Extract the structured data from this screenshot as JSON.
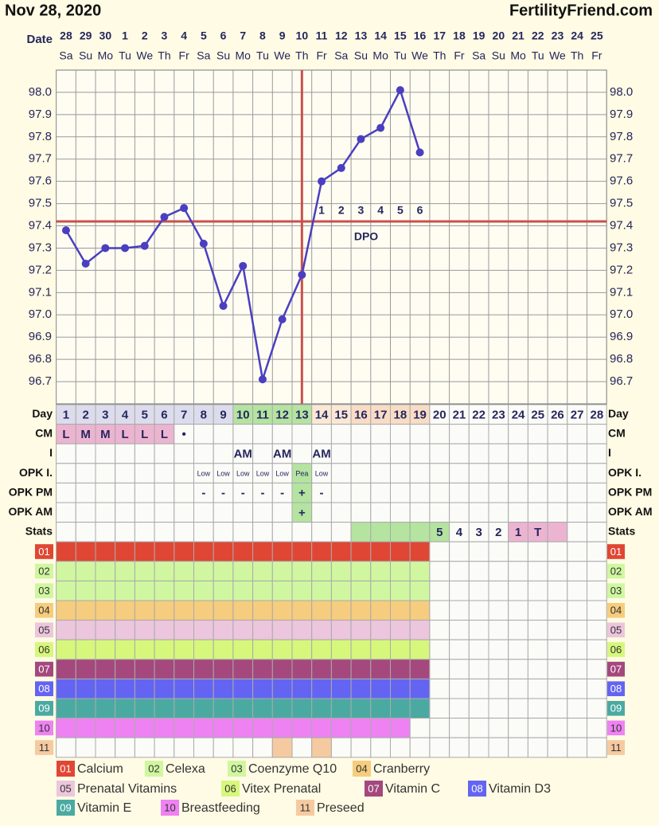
{
  "header": {
    "date": "Nov 28, 2020",
    "site": "FertilityFriend.com"
  },
  "date_row": {
    "label": "Date",
    "dates": [
      28,
      29,
      30,
      1,
      2,
      3,
      4,
      5,
      6,
      7,
      8,
      9,
      10,
      11,
      12,
      13,
      14,
      15,
      16,
      17,
      18,
      19,
      20,
      21,
      22,
      23,
      24,
      25
    ],
    "weekdays": [
      "Sa",
      "Su",
      "Mo",
      "Tu",
      "We",
      "Th",
      "Fr",
      "Sa",
      "Su",
      "Mo",
      "Tu",
      "We",
      "Th",
      "Fr",
      "Sa",
      "Su",
      "Mo",
      "Tu",
      "We",
      "Th",
      "Fr",
      "Sa",
      "Su",
      "Mo",
      "Tu",
      "We",
      "Th",
      "Fr"
    ]
  },
  "chart_data": {
    "type": "line",
    "categories": [
      28,
      29,
      30,
      1,
      2,
      3,
      4,
      5,
      6,
      7,
      8,
      9,
      10,
      11,
      12,
      13,
      14,
      15,
      16,
      17,
      18,
      19,
      20,
      21,
      22,
      23,
      24,
      25
    ],
    "series": [
      {
        "color": "#4a3fc0",
        "values": [
          97.38,
          97.23,
          97.3,
          97.3,
          97.31,
          97.44,
          97.48,
          97.32,
          97.04,
          97.22,
          96.71,
          96.98,
          97.18,
          97.6,
          97.66,
          97.79,
          97.84,
          98.01,
          97.73,
          null,
          null,
          null,
          null,
          null,
          null,
          null,
          null,
          null
        ]
      }
    ],
    "ylim": [
      96.6,
      98.1
    ],
    "yticks": [
      96.7,
      96.8,
      96.9,
      {
        "value": 97,
        "label": "97.0"
      },
      97.1,
      97.2,
      97.3,
      97.4,
      97.5,
      97.6,
      97.7,
      97.8,
      97.9,
      {
        "value": 98,
        "label": "98.0"
      }
    ],
    "grid": true,
    "coverline": 97.42,
    "coverline_color": "#c8514d",
    "ovulation_day": 13,
    "dpo_label": "DPO",
    "dpo": [
      null,
      null,
      null,
      null,
      null,
      null,
      null,
      null,
      null,
      null,
      null,
      null,
      null,
      1,
      2,
      3,
      4,
      5,
      6,
      null,
      null,
      null,
      null,
      null,
      null,
      null,
      null,
      null
    ]
  },
  "rows": [
    {
      "label": "Day",
      "cells": [
        1,
        2,
        3,
        4,
        5,
        6,
        7,
        8,
        9,
        10,
        11,
        12,
        13,
        14,
        15,
        16,
        17,
        18,
        19,
        20,
        21,
        22,
        23,
        24,
        25,
        26,
        27,
        28
      ],
      "colors": [
        "#dcdcec",
        "#dcdcec",
        "#dcdcec",
        "#dcdcec",
        "#dcdcec",
        "#dcdcec",
        "#dcdcec",
        "#dcdcec",
        "#dcdcec",
        "#b4e4a0",
        "#b4e4a0",
        "#b4e4a0",
        "#b4e4a0",
        "#fbe8d4",
        "#fbe8d4",
        "#f9dcc4",
        "#f9dcc4",
        "#f9dcc4",
        "#f9dcc4",
        null,
        null,
        null,
        null,
        null,
        null,
        null,
        null,
        null
      ]
    },
    {
      "label": "CM",
      "cells": [
        "L",
        "M",
        "M",
        "L",
        "L",
        "L",
        "•",
        null,
        null,
        null,
        null,
        null,
        null,
        null,
        null,
        null,
        null,
        null,
        null,
        null,
        null,
        null,
        null,
        null,
        null,
        null,
        null,
        null
      ],
      "colors": [
        "#ecb4d0",
        "#ecb4d0",
        "#ecb4d0",
        "#ecb4d0",
        "#ecb4d0",
        "#ecb4d0",
        null,
        null,
        null,
        null,
        null,
        null,
        null,
        null,
        null,
        null,
        null,
        null,
        null,
        null,
        null,
        null,
        null,
        null,
        null,
        null,
        null,
        null
      ]
    },
    {
      "label": "I",
      "cells": [
        null,
        null,
        null,
        null,
        null,
        null,
        null,
        null,
        null,
        "AM",
        null,
        "AM",
        null,
        "AM",
        null,
        null,
        null,
        null,
        null,
        null,
        null,
        null,
        null,
        null,
        null,
        null,
        null,
        null
      ]
    },
    {
      "label": "OPK I.",
      "cells": [
        null,
        null,
        null,
        null,
        null,
        null,
        null,
        "Low",
        "Low",
        "Low",
        "Low",
        "Low",
        "Pea",
        "Low",
        null,
        null,
        null,
        null,
        null,
        null,
        null,
        null,
        null,
        null,
        null,
        null,
        null,
        null
      ],
      "colors": [
        null,
        null,
        null,
        null,
        null,
        null,
        null,
        null,
        null,
        null,
        null,
        null,
        "#b4e4a0",
        null,
        null,
        null,
        null,
        null,
        null,
        null,
        null,
        null,
        null,
        null,
        null,
        null,
        null,
        null
      ]
    },
    {
      "label": "OPK PM",
      "cells": [
        null,
        null,
        null,
        null,
        null,
        null,
        null,
        "-",
        "-",
        "-",
        "-",
        "-",
        "+",
        "-",
        null,
        null,
        null,
        null,
        null,
        null,
        null,
        null,
        null,
        null,
        null,
        null,
        null,
        null
      ],
      "colors": [
        null,
        null,
        null,
        null,
        null,
        null,
        null,
        null,
        null,
        null,
        null,
        null,
        "#b4e4a0",
        null,
        null,
        null,
        null,
        null,
        null,
        null,
        null,
        null,
        null,
        null,
        null,
        null,
        null,
        null
      ]
    },
    {
      "label": "OPK AM",
      "cells": [
        null,
        null,
        null,
        null,
        null,
        null,
        null,
        null,
        null,
        null,
        null,
        null,
        "+",
        null,
        null,
        null,
        null,
        null,
        null,
        null,
        null,
        null,
        null,
        null,
        null,
        null,
        null,
        null
      ],
      "colors": [
        null,
        null,
        null,
        null,
        null,
        null,
        null,
        null,
        null,
        null,
        null,
        null,
        "#b4e4a0",
        null,
        null,
        null,
        null,
        null,
        null,
        null,
        null,
        null,
        null,
        null,
        null,
        null,
        null,
        null
      ]
    },
    {
      "label": "Stats",
      "cells": [
        null,
        null,
        null,
        null,
        null,
        null,
        null,
        null,
        null,
        null,
        null,
        null,
        null,
        null,
        null,
        null,
        null,
        null,
        null,
        5,
        4,
        3,
        2,
        1,
        "T",
        null,
        null,
        null
      ],
      "colors": [
        null,
        null,
        null,
        null,
        null,
        null,
        null,
        null,
        null,
        null,
        null,
        null,
        null,
        null,
        null,
        "#b4e4a0",
        "#b4e4a0",
        "#b4e4a0",
        "#b4e4a0",
        "#b4e4a0",
        null,
        null,
        null,
        "#ecb4d0",
        "#ecb4d0",
        "#ecb4d0",
        null,
        null
      ]
    }
  ],
  "medications": [
    {
      "code": "01",
      "name": "Calcium",
      "color": "#e04634",
      "filled": [
        true,
        true,
        true,
        true,
        true,
        true,
        true,
        true,
        true,
        true,
        true,
        true,
        true,
        true,
        true,
        true,
        true,
        true,
        true,
        false,
        false,
        false,
        false,
        false,
        false,
        false,
        false,
        false
      ]
    },
    {
      "code": "02",
      "name": "Celexa",
      "color": "#d0f7a0",
      "filled": [
        true,
        true,
        true,
        true,
        true,
        true,
        true,
        true,
        true,
        true,
        true,
        true,
        true,
        true,
        true,
        true,
        true,
        true,
        true,
        false,
        false,
        false,
        false,
        false,
        false,
        false,
        false,
        false
      ]
    },
    {
      "code": "03",
      "name": "Coenzyme Q10",
      "color": "#d0f7a0",
      "filled": [
        true,
        true,
        true,
        true,
        true,
        true,
        true,
        true,
        true,
        true,
        true,
        true,
        true,
        true,
        true,
        true,
        true,
        true,
        true,
        false,
        false,
        false,
        false,
        false,
        false,
        false,
        false,
        false
      ]
    },
    {
      "code": "04",
      "name": "Cranberry",
      "color": "#f6cc7e",
      "filled": [
        true,
        true,
        true,
        true,
        true,
        true,
        true,
        true,
        true,
        true,
        true,
        true,
        true,
        true,
        true,
        true,
        true,
        true,
        true,
        false,
        false,
        false,
        false,
        false,
        false,
        false,
        false,
        false
      ]
    },
    {
      "code": "05",
      "name": "Prenatal Vitamins",
      "color": "#ecc6dc",
      "filled": [
        true,
        true,
        true,
        true,
        true,
        true,
        true,
        true,
        true,
        true,
        true,
        true,
        true,
        true,
        true,
        true,
        true,
        true,
        true,
        false,
        false,
        false,
        false,
        false,
        false,
        false,
        false,
        false
      ]
    },
    {
      "code": "06",
      "name": "Vitex Prenatal",
      "color": "#d6f77c",
      "filled": [
        true,
        true,
        true,
        true,
        true,
        true,
        true,
        true,
        true,
        true,
        true,
        true,
        true,
        true,
        true,
        true,
        true,
        true,
        true,
        false,
        false,
        false,
        false,
        false,
        false,
        false,
        false,
        false
      ]
    },
    {
      "code": "07",
      "name": "Vitamin C",
      "color": "#a4487e",
      "filled": [
        true,
        true,
        true,
        true,
        true,
        true,
        true,
        true,
        true,
        true,
        true,
        true,
        true,
        true,
        true,
        true,
        true,
        true,
        true,
        false,
        false,
        false,
        false,
        false,
        false,
        false,
        false,
        false
      ]
    },
    {
      "code": "08",
      "name": "Vitamin D3",
      "color": "#6464f2",
      "filled": [
        true,
        true,
        true,
        true,
        true,
        true,
        true,
        true,
        true,
        true,
        true,
        true,
        true,
        true,
        true,
        true,
        true,
        true,
        true,
        false,
        false,
        false,
        false,
        false,
        false,
        false,
        false,
        false
      ]
    },
    {
      "code": "09",
      "name": "Vitamin E",
      "color": "#4aaaa2",
      "filled": [
        true,
        true,
        true,
        true,
        true,
        true,
        true,
        true,
        true,
        true,
        true,
        true,
        true,
        true,
        true,
        true,
        true,
        true,
        true,
        false,
        false,
        false,
        false,
        false,
        false,
        false,
        false,
        false
      ]
    },
    {
      "code": "10",
      "name": "Breastfeeding",
      "color": "#ee82f2",
      "filled": [
        true,
        true,
        true,
        true,
        true,
        true,
        true,
        true,
        true,
        true,
        true,
        true,
        true,
        true,
        true,
        true,
        true,
        true,
        false,
        false,
        false,
        false,
        false,
        false,
        false,
        false,
        false,
        false
      ]
    },
    {
      "code": "11",
      "name": "Preseed",
      "color": "#f6caa0",
      "filled": [
        false,
        false,
        false,
        false,
        false,
        false,
        false,
        false,
        false,
        false,
        false,
        true,
        false,
        true,
        false,
        false,
        false,
        false,
        false,
        false,
        false,
        false,
        false,
        false,
        false,
        false,
        false,
        false
      ]
    }
  ]
}
